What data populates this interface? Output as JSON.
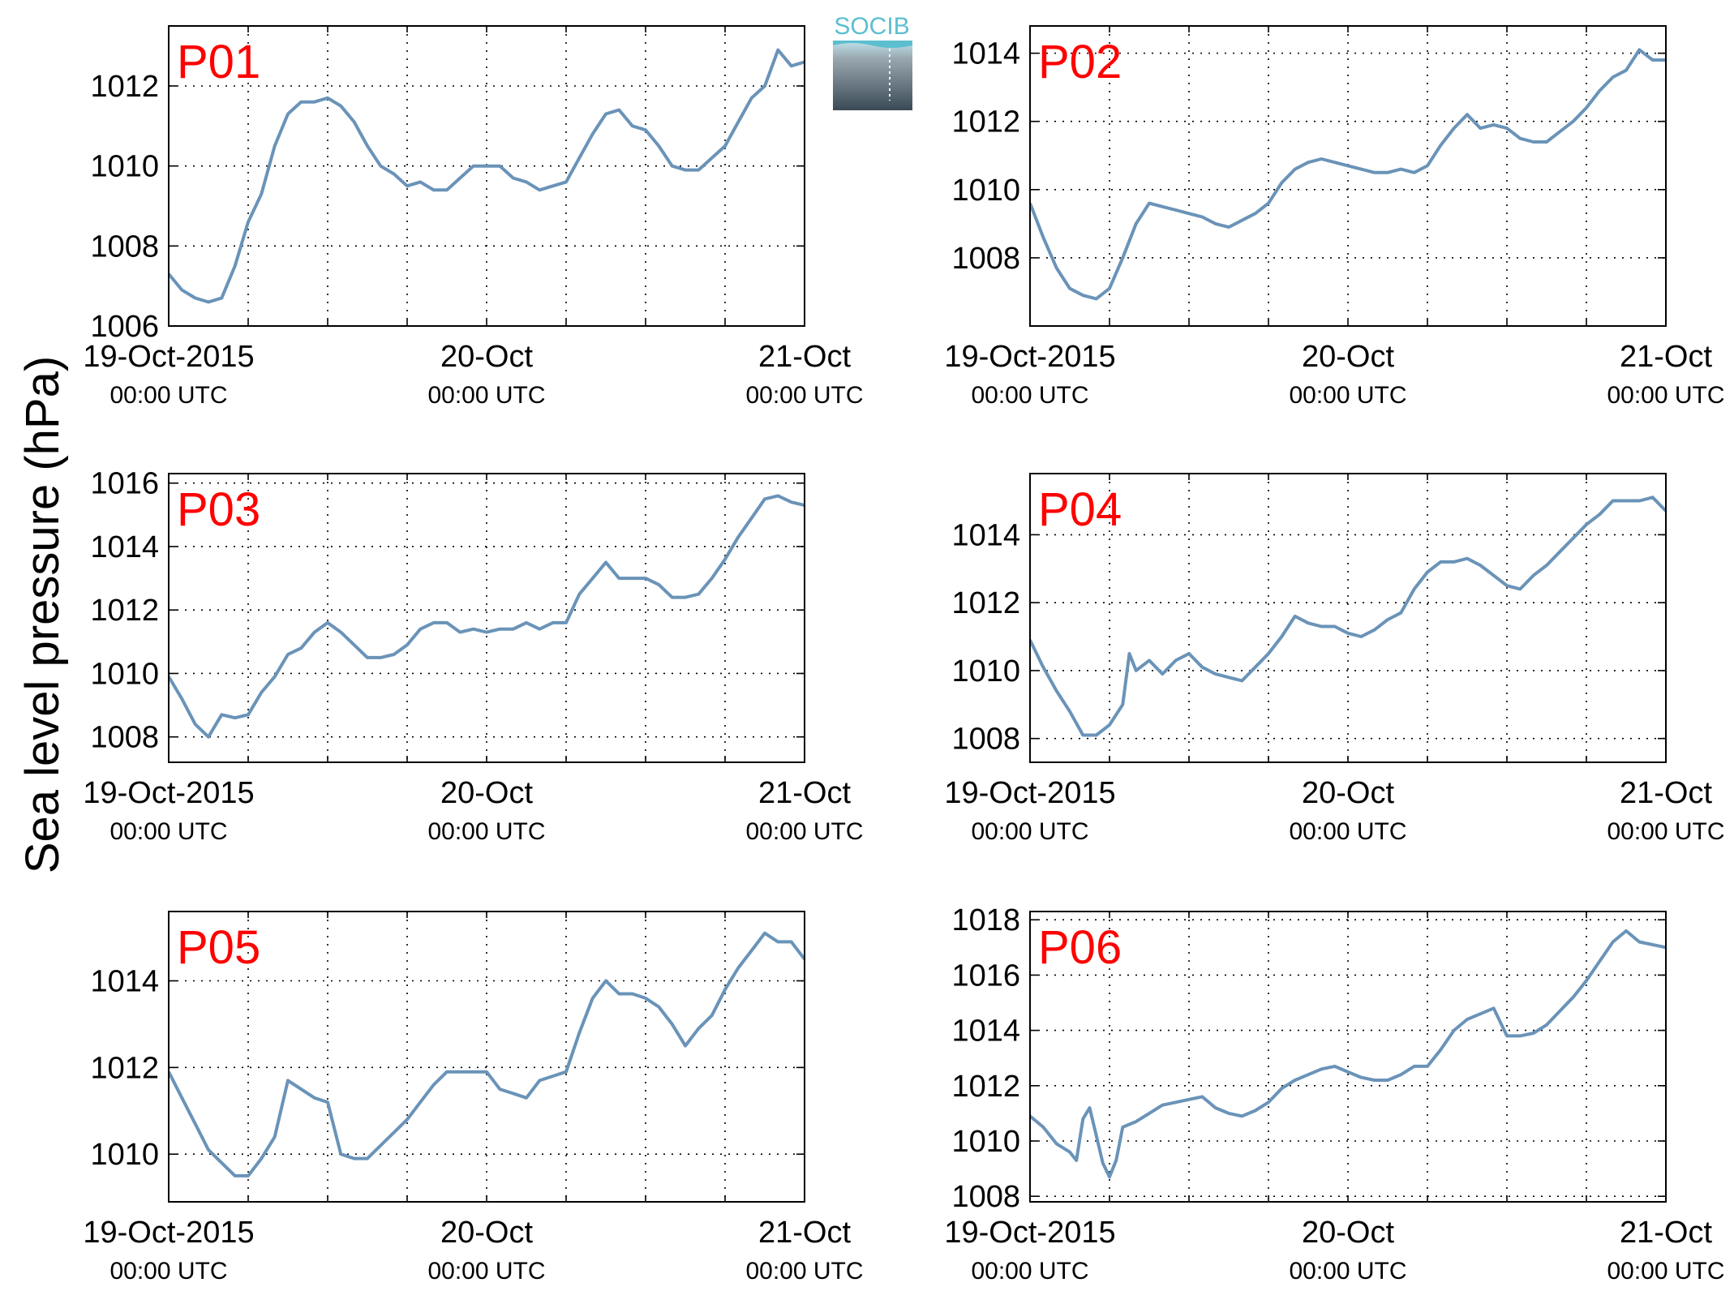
{
  "figure": {
    "ylabel": "Sea level pressure (hPa)",
    "logo_text": "SOCIB",
    "line_color": "#6a93b8",
    "label_color": "#ff0000",
    "x_ticks": [
      {
        "date": "19-Oct-2015",
        "time": "00:00 UTC"
      },
      {
        "date": "20-Oct",
        "time": "00:00 UTC"
      },
      {
        "date": "21-Oct",
        "time": "00:00 UTC"
      }
    ]
  },
  "chart_data": [
    {
      "type": "line",
      "title": "P01",
      "ylim": [
        1006,
        1013.5
      ],
      "yticks": [
        1006,
        1008,
        1010,
        1012
      ],
      "x_range_hours": [
        0,
        48
      ],
      "grid": true,
      "x": [
        0,
        1,
        2,
        3,
        4,
        5,
        6,
        7,
        8,
        9,
        10,
        11,
        12,
        13,
        14,
        15,
        16,
        17,
        18,
        19,
        20,
        21,
        22,
        23,
        24,
        25,
        26,
        27,
        28,
        29,
        30,
        31,
        32,
        33,
        34,
        35,
        36,
        37,
        38,
        39,
        40,
        41,
        42,
        43,
        44,
        45,
        46,
        47,
        48
      ],
      "y": [
        1007.3,
        1006.9,
        1006.7,
        1006.6,
        1006.7,
        1007.5,
        1008.6,
        1009.3,
        1010.5,
        1011.3,
        1011.6,
        1011.6,
        1011.7,
        1011.5,
        1011.1,
        1010.5,
        1010.0,
        1009.8,
        1009.5,
        1009.6,
        1009.4,
        1009.4,
        1009.7,
        1010.0,
        1010.0,
        1010.0,
        1009.7,
        1009.6,
        1009.4,
        1009.5,
        1009.6,
        1010.2,
        1010.8,
        1011.3,
        1011.4,
        1011.0,
        1010.9,
        1010.5,
        1010.0,
        1009.9,
        1009.9,
        1010.2,
        1010.5,
        1011.1,
        1011.7,
        1012.0,
        1012.9,
        1012.5,
        1012.6
      ]
    },
    {
      "type": "line",
      "title": "P02",
      "ylim": [
        1006,
        1014.8
      ],
      "yticks": [
        1008,
        1010,
        1012,
        1014
      ],
      "x_range_hours": [
        0,
        48
      ],
      "grid": true,
      "x": [
        0,
        1,
        2,
        3,
        4,
        5,
        6,
        7,
        8,
        9,
        10,
        11,
        12,
        13,
        14,
        15,
        16,
        17,
        18,
        19,
        20,
        21,
        22,
        23,
        24,
        25,
        26,
        27,
        28,
        29,
        30,
        31,
        32,
        33,
        34,
        35,
        36,
        37,
        38,
        39,
        40,
        41,
        42,
        43,
        44,
        45,
        46,
        47,
        48
      ],
      "y": [
        1009.6,
        1008.6,
        1007.7,
        1007.1,
        1006.9,
        1006.8,
        1007.1,
        1008.0,
        1009.0,
        1009.6,
        1009.5,
        1009.4,
        1009.3,
        1009.2,
        1009.0,
        1008.9,
        1009.1,
        1009.3,
        1009.6,
        1010.2,
        1010.6,
        1010.8,
        1010.9,
        1010.8,
        1010.7,
        1010.6,
        1010.5,
        1010.5,
        1010.6,
        1010.5,
        1010.7,
        1011.3,
        1011.8,
        1012.2,
        1011.8,
        1011.9,
        1011.8,
        1011.5,
        1011.4,
        1011.4,
        1011.7,
        1012.0,
        1012.4,
        1012.9,
        1013.3,
        1013.5,
        1014.1,
        1013.8,
        1013.8
      ]
    },
    {
      "type": "line",
      "title": "P03",
      "ylim": [
        1007.2,
        1016.3
      ],
      "yticks": [
        1008,
        1010,
        1012,
        1014,
        1016
      ],
      "x_range_hours": [
        0,
        48
      ],
      "grid": true,
      "x": [
        0,
        1,
        2,
        3,
        4,
        5,
        6,
        7,
        8,
        9,
        10,
        11,
        12,
        13,
        14,
        15,
        16,
        17,
        18,
        19,
        20,
        21,
        22,
        23,
        24,
        25,
        26,
        27,
        28,
        29,
        30,
        31,
        32,
        33,
        34,
        35,
        36,
        37,
        38,
        39,
        40,
        41,
        42,
        43,
        44,
        45,
        46,
        47,
        48
      ],
      "y": [
        1009.9,
        1009.2,
        1008.4,
        1008.0,
        1008.7,
        1008.6,
        1008.7,
        1009.4,
        1009.9,
        1010.6,
        1010.8,
        1011.3,
        1011.6,
        1011.3,
        1010.9,
        1010.5,
        1010.5,
        1010.6,
        1010.9,
        1011.4,
        1011.6,
        1011.6,
        1011.3,
        1011.4,
        1011.3,
        1011.4,
        1011.4,
        1011.6,
        1011.4,
        1011.6,
        1011.6,
        1012.5,
        1013.0,
        1013.5,
        1013.0,
        1013.0,
        1013.0,
        1012.8,
        1012.4,
        1012.4,
        1012.5,
        1013.0,
        1013.6,
        1014.3,
        1014.9,
        1015.5,
        1015.6,
        1015.4,
        1015.3
      ]
    },
    {
      "type": "line",
      "title": "P04",
      "ylim": [
        1007.3,
        1015.8
      ],
      "yticks": [
        1008,
        1010,
        1012,
        1014
      ],
      "x_range_hours": [
        0,
        48
      ],
      "grid": true,
      "x": [
        0,
        1,
        2,
        3,
        4,
        5,
        6,
        7,
        7.5,
        8,
        9,
        10,
        11,
        12,
        13,
        14,
        15,
        16,
        17,
        18,
        19,
        20,
        21,
        22,
        23,
        24,
        25,
        26,
        27,
        28,
        29,
        30,
        31,
        32,
        33,
        34,
        35,
        36,
        37,
        38,
        39,
        40,
        41,
        42,
        43,
        44,
        45,
        46,
        47,
        48
      ],
      "y": [
        1010.9,
        1010.1,
        1009.4,
        1008.8,
        1008.1,
        1008.1,
        1008.4,
        1009.0,
        1010.5,
        1010.0,
        1010.3,
        1009.9,
        1010.3,
        1010.5,
        1010.1,
        1009.9,
        1009.8,
        1009.7,
        1010.1,
        1010.5,
        1011.0,
        1011.6,
        1011.4,
        1011.3,
        1011.3,
        1011.1,
        1011.0,
        1011.2,
        1011.5,
        1011.7,
        1012.4,
        1012.9,
        1013.2,
        1013.2,
        1013.3,
        1013.1,
        1012.8,
        1012.5,
        1012.4,
        1012.8,
        1013.1,
        1013.5,
        1013.9,
        1014.3,
        1014.6,
        1015.0,
        1015.0,
        1015.0,
        1015.1,
        1014.7
      ]
    },
    {
      "type": "line",
      "title": "P05",
      "ylim": [
        1008.9,
        1015.6
      ],
      "yticks": [
        1010,
        1012,
        1014
      ],
      "x_range_hours": [
        0,
        48
      ],
      "grid": true,
      "x": [
        0,
        1,
        2,
        3,
        4,
        5,
        6,
        7,
        8,
        9,
        10,
        11,
        12,
        13,
        14,
        15,
        16,
        17,
        18,
        19,
        20,
        21,
        22,
        23,
        24,
        25,
        26,
        27,
        28,
        29,
        30,
        31,
        32,
        33,
        34,
        35,
        36,
        37,
        38,
        39,
        40,
        41,
        42,
        43,
        44,
        45,
        46,
        47,
        48
      ],
      "y": [
        1011.9,
        1011.3,
        1010.7,
        1010.1,
        1009.8,
        1009.5,
        1009.5,
        1009.9,
        1010.4,
        1011.7,
        1011.5,
        1011.3,
        1011.2,
        1010.0,
        1009.9,
        1009.9,
        1010.2,
        1010.5,
        1010.8,
        1011.2,
        1011.6,
        1011.9,
        1011.9,
        1011.9,
        1011.9,
        1011.5,
        1011.4,
        1011.3,
        1011.7,
        1011.8,
        1011.9,
        1012.8,
        1013.6,
        1014.0,
        1013.7,
        1013.7,
        1013.6,
        1013.4,
        1013.0,
        1012.5,
        1012.9,
        1013.2,
        1013.8,
        1014.3,
        1014.7,
        1015.1,
        1014.9,
        1014.9,
        1014.5
      ]
    },
    {
      "type": "line",
      "title": "P06",
      "ylim": [
        1007.8,
        1018.3
      ],
      "yticks": [
        1008,
        1010,
        1012,
        1014,
        1016,
        1018
      ],
      "x_range_hours": [
        0,
        48
      ],
      "grid": true,
      "x": [
        0,
        1,
        2,
        3,
        3.5,
        4,
        4.5,
        5,
        5.5,
        6,
        6.5,
        7,
        8,
        9,
        10,
        11,
        12,
        13,
        14,
        15,
        16,
        17,
        18,
        19,
        20,
        21,
        22,
        23,
        24,
        25,
        26,
        27,
        28,
        29,
        30,
        31,
        32,
        33,
        34,
        35,
        36,
        37,
        38,
        39,
        40,
        41,
        42,
        43,
        44,
        45,
        46,
        47,
        48
      ],
      "y": [
        1010.9,
        1010.5,
        1009.9,
        1009.6,
        1009.3,
        1010.8,
        1011.2,
        1010.2,
        1009.2,
        1008.7,
        1009.3,
        1010.5,
        1010.7,
        1011.0,
        1011.3,
        1011.4,
        1011.5,
        1011.6,
        1011.2,
        1011.0,
        1010.9,
        1011.1,
        1011.4,
        1011.9,
        1012.2,
        1012.4,
        1012.6,
        1012.7,
        1012.5,
        1012.3,
        1012.2,
        1012.2,
        1012.4,
        1012.7,
        1012.7,
        1013.3,
        1014.0,
        1014.4,
        1014.6,
        1014.8,
        1013.8,
        1013.8,
        1013.9,
        1014.2,
        1014.7,
        1015.2,
        1015.8,
        1016.5,
        1017.2,
        1017.6,
        1017.2,
        1017.1,
        1017.0
      ]
    }
  ]
}
